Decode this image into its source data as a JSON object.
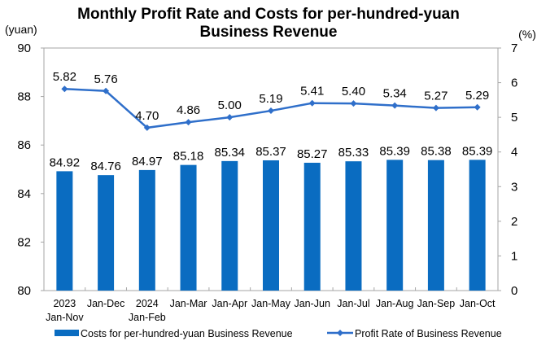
{
  "chart_data": {
    "type": "bar",
    "title": [
      "Monthly Profit Rate and Costs for per-hundred-yuan",
      "Business Revenue"
    ],
    "left_unit": "(yuan)",
    "right_unit": "(%)",
    "categories": [
      [
        "2023",
        "Jan-Nov"
      ],
      [
        "Jan-Dec"
      ],
      [
        "2024",
        "Jan-Feb"
      ],
      [
        "Jan-Mar"
      ],
      [
        "Jan-Apr"
      ],
      [
        "Jan-May"
      ],
      [
        "Jan-Jun"
      ],
      [
        "Jan-Jul"
      ],
      [
        "Jan-Aug"
      ],
      [
        "Jan-Sep"
      ],
      [
        "Jan-Oct"
      ]
    ],
    "left_axis": {
      "ylim": [
        80,
        90
      ],
      "ticks": [
        80,
        82,
        84,
        86,
        88,
        90
      ]
    },
    "right_axis": {
      "ylim": [
        0,
        7
      ],
      "ticks": [
        0,
        1,
        2,
        3,
        4,
        5,
        6,
        7
      ]
    },
    "series": [
      {
        "name": "Costs for per-hundred-yuan Business Revenue",
        "type": "bar",
        "axis": "left",
        "color": "#0a6cc1",
        "values": [
          84.92,
          84.76,
          84.97,
          85.18,
          85.34,
          85.37,
          85.27,
          85.33,
          85.39,
          85.38,
          85.39
        ]
      },
      {
        "name": "Profit Rate of Business Revenue",
        "type": "line",
        "axis": "right",
        "color": "#2f6fca",
        "values": [
          5.82,
          5.76,
          4.7,
          4.86,
          5.0,
          5.19,
          5.41,
          5.4,
          5.34,
          5.27,
          5.29
        ]
      }
    ],
    "legend_position": "bottom",
    "grid": false
  }
}
